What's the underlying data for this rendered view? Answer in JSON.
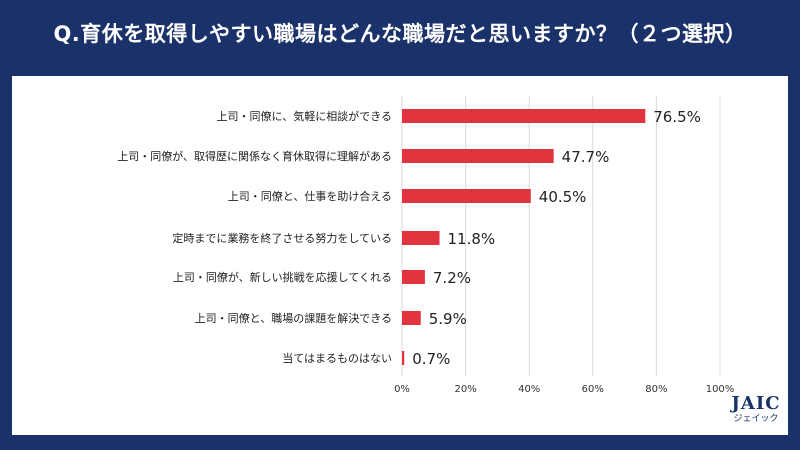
{
  "colors": {
    "background": "#1b3169",
    "bar": "#e2343f",
    "grid": "#d9d9d9"
  },
  "logo": {
    "name": "JAIC",
    "kana": "ジェイック"
  },
  "chart_data": {
    "type": "bar",
    "orientation": "horizontal",
    "title": "Q.育休を取得しやすい職場はどんな職場だと思いますか？（２つ選択）",
    "categories": [
      "上司・同僚に、気軽に相談ができる",
      "上司・同僚が、取得歴に関係なく育休取得に理解がある",
      "上司・同僚と、仕事を助け合える",
      "定時までに業務を終了させる努力をしている",
      "上司・同僚が、新しい挑戦を応援してくれる",
      "上司・同僚と、職場の課題を解決できる",
      "当てはまるものはない"
    ],
    "values": [
      76.5,
      47.7,
      40.5,
      11.8,
      7.2,
      5.9,
      0.7
    ],
    "data_labels": [
      "76.5%",
      "47.7%",
      "40.5%",
      "11.8%",
      "7.2%",
      "5.9%",
      "0.7%"
    ],
    "xlim": [
      0,
      100
    ],
    "xticks": [
      0,
      20,
      40,
      60,
      80,
      100
    ],
    "xtick_labels": [
      "0%",
      "20%",
      "40%",
      "60%",
      "80%",
      "100%"
    ],
    "grid": true,
    "legend": "none"
  }
}
